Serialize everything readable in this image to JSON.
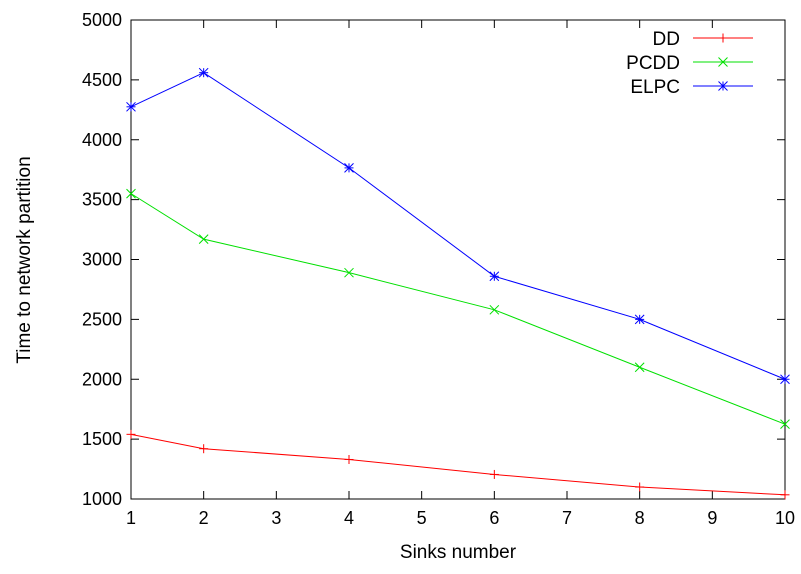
{
  "chart_data": {
    "type": "line",
    "title": "",
    "xlabel": "Sinks number",
    "ylabel": "Time to network partition",
    "xlim": [
      1,
      10
    ],
    "ylim": [
      1000,
      5000
    ],
    "xticks": [
      1,
      2,
      3,
      4,
      5,
      6,
      7,
      8,
      9,
      10
    ],
    "yticks": [
      1000,
      1500,
      2000,
      2500,
      3000,
      3500,
      4000,
      4500,
      5000
    ],
    "x_tick_labels": [
      "1",
      "2",
      "3",
      "4",
      "5",
      "6",
      "7",
      "8",
      "9",
      "10"
    ],
    "y_tick_labels": [
      "1000",
      "1500",
      "2000",
      "2500",
      "3000",
      "3500",
      "4000",
      "4500",
      "5000"
    ],
    "legend_position": "top-right",
    "grid": false,
    "x": [
      1,
      2,
      4,
      6,
      8,
      10
    ],
    "series": [
      {
        "name": "DD",
        "color": "#ff0000",
        "marker": "plus",
        "values": [
          1540,
          1420,
          1330,
          1205,
          1100,
          1035
        ]
      },
      {
        "name": "PCDD",
        "color": "#00e000",
        "marker": "cross",
        "values": [
          3550,
          3170,
          2890,
          2580,
          2100,
          1625
        ]
      },
      {
        "name": "ELPC",
        "color": "#0000ff",
        "marker": "star",
        "values": [
          4275,
          4560,
          3765,
          2860,
          2500,
          2000
        ]
      }
    ]
  }
}
